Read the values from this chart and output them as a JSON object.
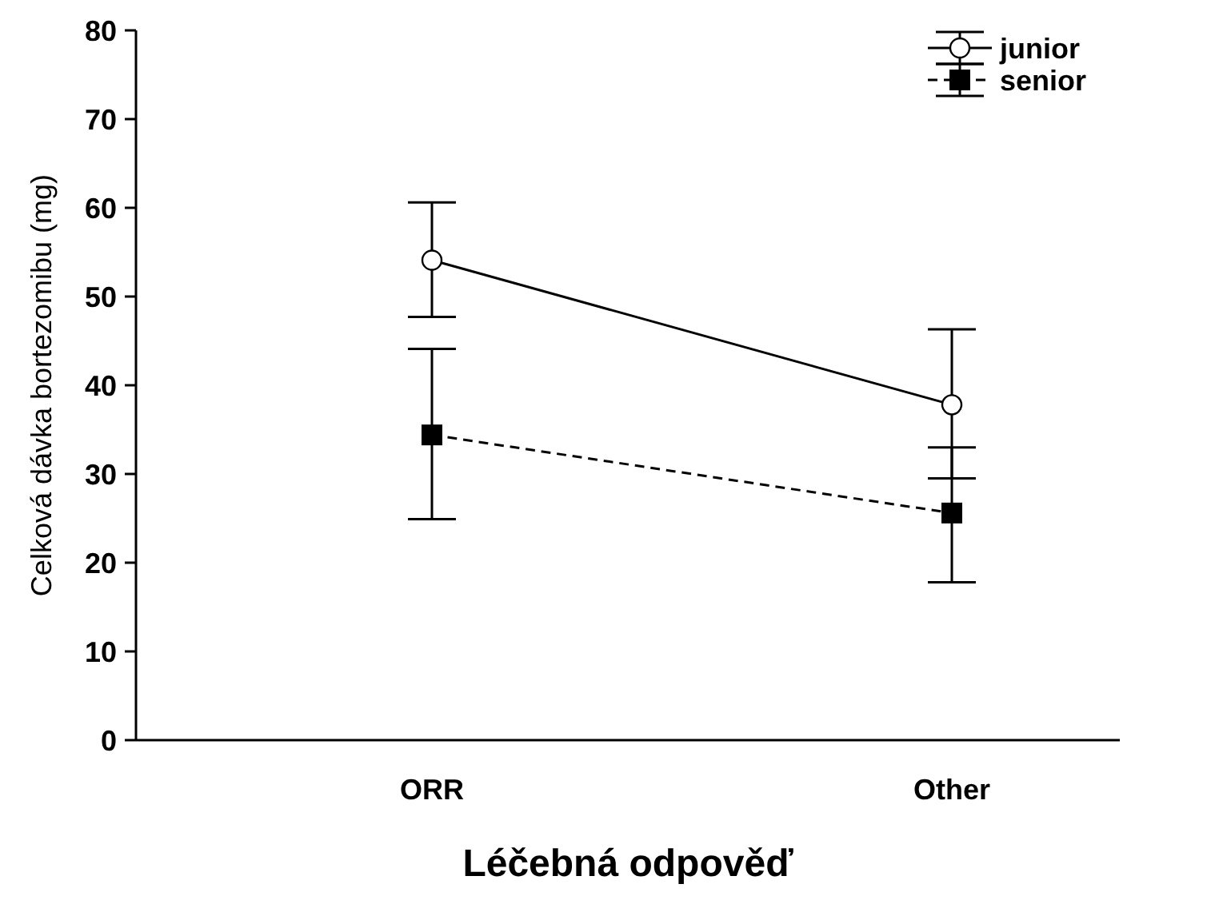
{
  "chart_data": {
    "type": "line",
    "xlabel": "Léčebná odpověď",
    "ylabel": "Celková dávka bortezomibu (mg)",
    "categories": [
      "ORR",
      "Other"
    ],
    "ylim": [
      0,
      80
    ],
    "yticks": [
      0,
      10,
      20,
      30,
      40,
      50,
      60,
      70,
      80
    ],
    "grid": false,
    "legend": "top right",
    "series": [
      {
        "name": "junior",
        "color": "#000000",
        "marker": "circle",
        "line_style": "solid",
        "values": [
          54.1,
          37.8
        ],
        "errors": [
          [
            47.7,
            60.6
          ],
          [
            29.5,
            46.3
          ]
        ]
      },
      {
        "name": "senior",
        "color": "#000000",
        "marker": "square",
        "line_style": "dashed",
        "values": [
          34.4,
          25.6
        ],
        "errors": [
          [
            24.9,
            44.1
          ],
          [
            17.8,
            33.0
          ]
        ]
      }
    ]
  }
}
